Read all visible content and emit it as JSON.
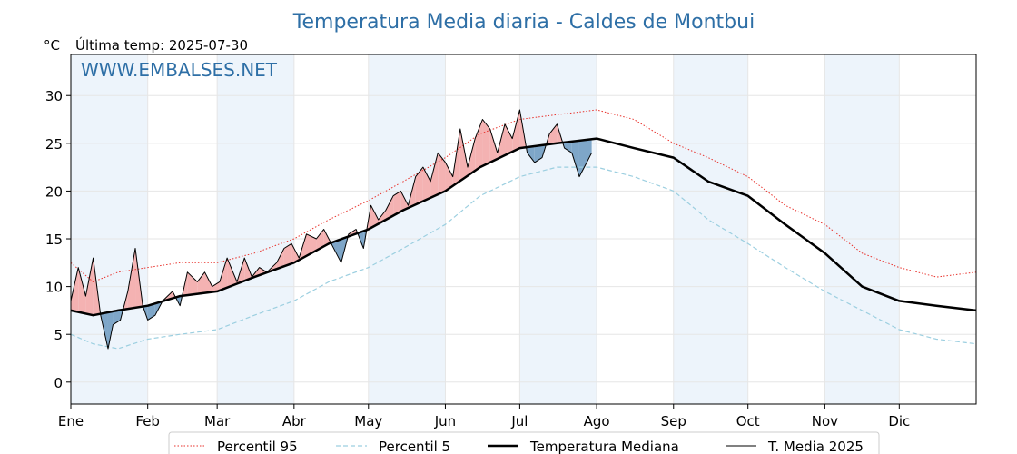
{
  "title": "Temperatura Media diaria - Caldes de Montbui",
  "unit_label": "°C",
  "last_temp_label": "Última temp: 2025-07-30",
  "watermark": "WWW.EMBALSES.NET",
  "colors": {
    "p95": "#e8322c",
    "p5": "#9ccfe0",
    "median": "#000000",
    "current": "#000000",
    "above_fill": "#f4b2b2",
    "below_fill": "#7ea6c8",
    "month_band": "#edf4fb",
    "title": "#2e6fa6"
  },
  "legend": [
    {
      "label": "Percentil 95",
      "style": "dotted-red"
    },
    {
      "label": "Percentil 5",
      "style": "dashed-lightblue"
    },
    {
      "label": "Temperatura Mediana",
      "style": "thick-black"
    },
    {
      "label": "T. Media 2025",
      "style": "thin-black"
    }
  ],
  "chart_data": {
    "type": "line",
    "xlabel": "",
    "ylabel": "°C",
    "ylim": [
      -2.3,
      34.3
    ],
    "yticks": [
      0,
      5,
      10,
      15,
      20,
      25,
      30
    ],
    "xlim": [
      1,
      366
    ],
    "month_ticks": [
      {
        "label": "Ene",
        "day": 1
      },
      {
        "label": "Feb",
        "day": 32
      },
      {
        "label": "Mar",
        "day": 60
      },
      {
        "label": "Abr",
        "day": 91
      },
      {
        "label": "May",
        "day": 121
      },
      {
        "label": "Jun",
        "day": 152
      },
      {
        "label": "Jul",
        "day": 182
      },
      {
        "label": "Ago",
        "day": 213
      },
      {
        "label": "Sep",
        "day": 244
      },
      {
        "label": "Oct",
        "day": 274
      },
      {
        "label": "Nov",
        "day": 305
      },
      {
        "label": "Dic",
        "day": 335
      }
    ],
    "grid": true,
    "legend_position": "bottom",
    "series": [
      {
        "name": "Percentil 95",
        "x": [
          1,
          10,
          20,
          32,
          45,
          60,
          75,
          91,
          105,
          121,
          135,
          152,
          166,
          182,
          197,
          213,
          228,
          244,
          258,
          274,
          289,
          305,
          320,
          335,
          350,
          366
        ],
        "y": [
          12.5,
          10.5,
          11.5,
          12.0,
          12.5,
          12.5,
          13.5,
          15.0,
          17.0,
          19.0,
          21.0,
          23.5,
          26.0,
          27.5,
          28.0,
          28.5,
          27.5,
          25.0,
          23.5,
          21.5,
          18.5,
          16.5,
          13.5,
          12.0,
          11.0,
          11.5
        ]
      },
      {
        "name": "Percentil 5",
        "x": [
          1,
          10,
          20,
          32,
          45,
          60,
          75,
          91,
          105,
          121,
          135,
          152,
          166,
          182,
          197,
          213,
          228,
          244,
          258,
          274,
          289,
          305,
          320,
          335,
          350,
          366
        ],
        "y": [
          5.0,
          4.0,
          3.5,
          4.5,
          5.0,
          5.5,
          7.0,
          8.5,
          10.5,
          12.0,
          14.0,
          16.5,
          19.5,
          21.5,
          22.5,
          22.5,
          21.5,
          20.0,
          17.0,
          14.5,
          12.0,
          9.5,
          7.5,
          5.5,
          4.5,
          4.0
        ]
      },
      {
        "name": "Temperatura Mediana",
        "x": [
          1,
          10,
          20,
          32,
          45,
          60,
          75,
          91,
          105,
          121,
          135,
          152,
          166,
          182,
          197,
          213,
          228,
          244,
          258,
          274,
          289,
          305,
          320,
          335,
          350,
          366
        ],
        "y": [
          7.5,
          7.0,
          7.5,
          8.0,
          9.0,
          9.5,
          11.0,
          12.5,
          14.5,
          16.0,
          18.0,
          20.0,
          22.5,
          24.5,
          25.0,
          25.5,
          24.5,
          23.5,
          21.0,
          19.5,
          16.5,
          13.5,
          10.0,
          8.5,
          8.0,
          7.5
        ]
      },
      {
        "name": "T. Media 2025",
        "x": [
          1,
          4,
          7,
          10,
          13,
          16,
          18,
          21,
          24,
          27,
          30,
          32,
          35,
          38,
          42,
          45,
          48,
          52,
          55,
          58,
          61,
          64,
          68,
          71,
          74,
          77,
          80,
          84,
          87,
          90,
          93,
          96,
          100,
          103,
          106,
          110,
          113,
          116,
          119,
          122,
          125,
          128,
          131,
          134,
          137,
          140,
          143,
          146,
          149,
          152,
          155,
          158,
          161,
          164,
          167,
          170,
          173,
          176,
          179,
          182,
          185,
          188,
          191,
          194,
          197,
          200,
          203,
          206,
          209,
          211
        ],
        "y": [
          8.5,
          12.0,
          9.0,
          13.0,
          7.0,
          3.5,
          6.0,
          6.5,
          9.5,
          14.0,
          8.0,
          6.5,
          7.0,
          8.5,
          9.5,
          8.0,
          11.5,
          10.5,
          11.5,
          10.0,
          10.5,
          13.0,
          10.5,
          13.0,
          11.0,
          12.0,
          11.5,
          12.5,
          14.0,
          14.5,
          13.0,
          15.5,
          15.0,
          16.0,
          14.5,
          12.5,
          15.5,
          16.0,
          14.0,
          18.5,
          17.0,
          18.0,
          19.5,
          20.0,
          18.5,
          21.5,
          22.5,
          21.0,
          24.0,
          23.0,
          21.5,
          26.5,
          22.5,
          25.5,
          27.5,
          26.5,
          24.0,
          27.0,
          25.5,
          28.5,
          24.0,
          23.0,
          23.5,
          26.0,
          27.0,
          24.5,
          24.0,
          21.5,
          23.0,
          24.0
        ]
      }
    ]
  }
}
